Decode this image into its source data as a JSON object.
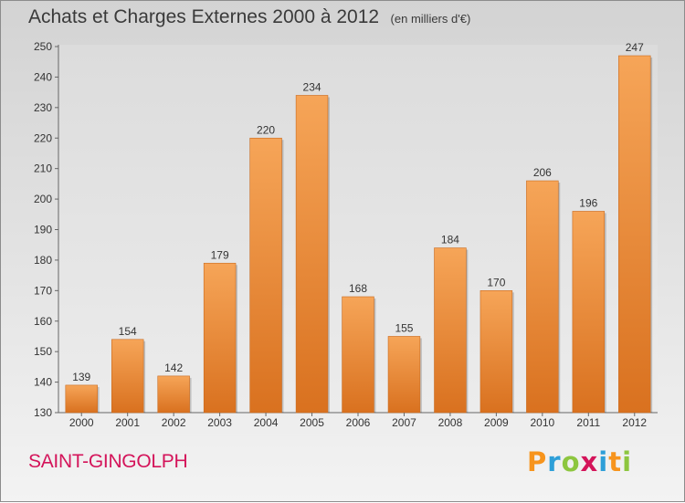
{
  "header": {
    "title": "Achats et Charges Externes 2000 à 2012",
    "subtitle": "(en milliers d'€)"
  },
  "commune": "SAINT-GINGOLPH",
  "brand": {
    "letters": [
      "P",
      "r",
      "o",
      "x",
      "i",
      "t",
      "i"
    ],
    "colors": [
      "#f7941d",
      "#2e9fd8",
      "#8dc63f",
      "#d4145a",
      "#2e9fd8",
      "#f7941d",
      "#8dc63f"
    ]
  },
  "chart_data": {
    "type": "bar",
    "categories": [
      "2000",
      "2001",
      "2002",
      "2003",
      "2004",
      "2005",
      "2006",
      "2007",
      "2008",
      "2009",
      "2010",
      "2011",
      "2012"
    ],
    "values": [
      139,
      154,
      142,
      179,
      220,
      234,
      168,
      155,
      184,
      170,
      206,
      196,
      247
    ],
    "ylim": [
      130,
      250
    ],
    "yticks": [
      130,
      140,
      150,
      160,
      170,
      180,
      190,
      200,
      210,
      220,
      230,
      240,
      250
    ],
    "grid": false,
    "bar_color": "#ee8a3a"
  }
}
